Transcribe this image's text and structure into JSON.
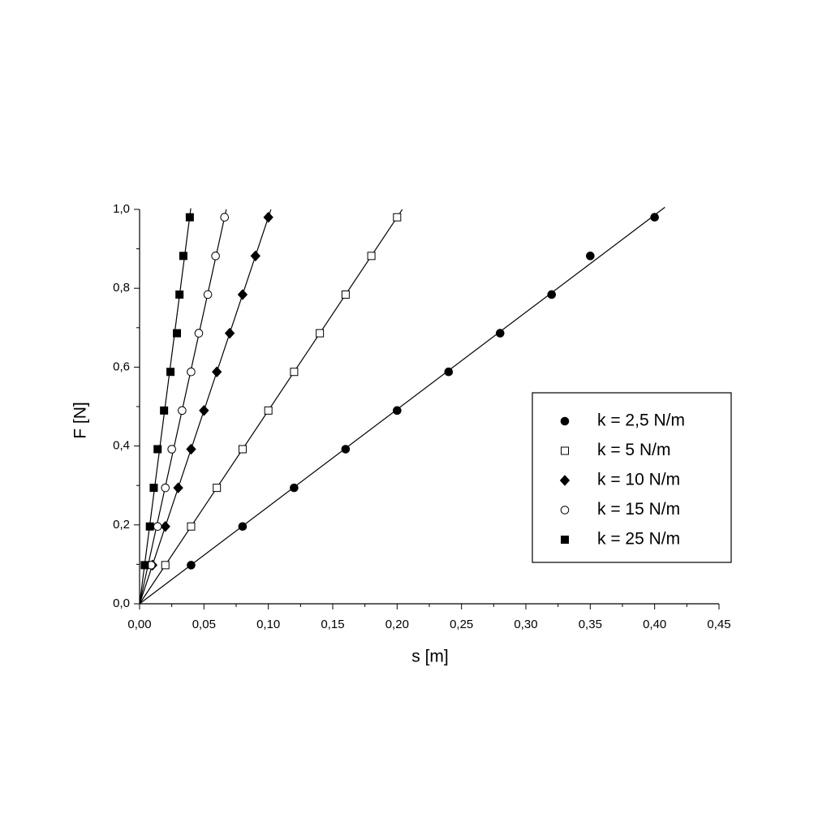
{
  "chart_data": {
    "type": "scatter",
    "xlabel": "s [m]",
    "ylabel": "F [N]",
    "xlim": [
      0,
      0.45
    ],
    "ylim": [
      0,
      1.0
    ],
    "xticks": [
      {
        "value": 0,
        "label": "0,00"
      },
      {
        "value": 0.05,
        "label": "0,05"
      },
      {
        "value": 0.1,
        "label": "0,10"
      },
      {
        "value": 0.15,
        "label": "0,15"
      },
      {
        "value": 0.2,
        "label": "0,20"
      },
      {
        "value": 0.25,
        "label": "0,25"
      },
      {
        "value": 0.3,
        "label": "0,30"
      },
      {
        "value": 0.35,
        "label": "0,35"
      },
      {
        "value": 0.4,
        "label": "0,40"
      },
      {
        "value": 0.45,
        "label": "0,45"
      }
    ],
    "yticks": [
      {
        "value": 0,
        "label": "0,0"
      },
      {
        "value": 0.2,
        "label": "0,2"
      },
      {
        "value": 0.4,
        "label": "0,4"
      },
      {
        "value": 0.6,
        "label": "0,6"
      },
      {
        "value": 0.8,
        "label": "0,8"
      },
      {
        "value": 1.0,
        "label": "1,0"
      }
    ],
    "legend": "right",
    "fit_lines": true,
    "series": [
      {
        "name": "k = 2,5 N/m",
        "color": "#000000",
        "marker": "circle",
        "filled": true,
        "x": [
          0.04,
          0.08,
          0.12,
          0.16,
          0.2,
          0.24,
          0.28,
          0.32,
          0.35,
          0.4
        ],
        "values": [
          0.098,
          0.196,
          0.294,
          0.392,
          0.49,
          0.588,
          0.686,
          0.784,
          0.882,
          0.98
        ]
      },
      {
        "name": "k = 5 N/m",
        "color": "#000000",
        "marker": "square",
        "filled": false,
        "x": [
          0.02,
          0.04,
          0.06,
          0.08,
          0.1,
          0.12,
          0.14,
          0.16,
          0.18,
          0.2
        ],
        "values": [
          0.098,
          0.196,
          0.294,
          0.392,
          0.49,
          0.588,
          0.686,
          0.784,
          0.882,
          0.98
        ]
      },
      {
        "name": "k = 10 N/m",
        "color": "#000000",
        "marker": "diamond",
        "filled": true,
        "x": [
          0.01,
          0.02,
          0.03,
          0.04,
          0.05,
          0.06,
          0.07,
          0.08,
          0.09,
          0.1
        ],
        "values": [
          0.098,
          0.196,
          0.294,
          0.392,
          0.49,
          0.588,
          0.686,
          0.784,
          0.882,
          0.98
        ]
      },
      {
        "name": "k = 15 N/m",
        "color": "#000000",
        "marker": "circle",
        "filled": false,
        "x": [
          0.009,
          0.014,
          0.02,
          0.025,
          0.033,
          0.04,
          0.046,
          0.053,
          0.059,
          0.066
        ],
        "values": [
          0.098,
          0.196,
          0.294,
          0.392,
          0.49,
          0.588,
          0.686,
          0.784,
          0.882,
          0.98
        ]
      },
      {
        "name": "k = 25 N/m",
        "color": "#000000",
        "marker": "square",
        "filled": true,
        "x": [
          0.004,
          0.008,
          0.011,
          0.014,
          0.019,
          0.024,
          0.029,
          0.031,
          0.034,
          0.039
        ],
        "values": [
          0.098,
          0.196,
          0.294,
          0.392,
          0.49,
          0.588,
          0.686,
          0.784,
          0.882,
          0.98
        ]
      }
    ]
  }
}
